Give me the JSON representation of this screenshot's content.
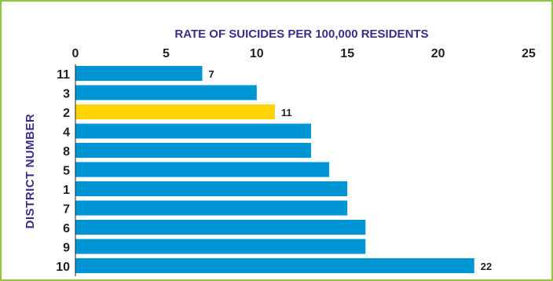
{
  "chart_data": {
    "type": "bar",
    "orientation": "horizontal",
    "title": "RATE OF SUICIDES PER 100,000 RESIDENTS",
    "xlabel": "RATE OF SUICIDES PER 100,000 RESIDENTS",
    "ylabel": "DISTRICT NUMBER",
    "xlim": [
      0,
      25
    ],
    "x_ticks": [
      "0",
      "5",
      "10",
      "15",
      "20",
      "25"
    ],
    "x_axis_position": "top",
    "categories": [
      "11",
      "3",
      "2",
      "4",
      "8",
      "5",
      "1",
      "7",
      "6",
      "9",
      "10"
    ],
    "values": [
      7,
      10,
      11,
      13,
      13,
      14,
      15,
      15,
      16,
      16,
      22
    ],
    "data_labels": [
      "7",
      "",
      "11",
      "",
      "",
      "",
      "",
      "",
      "",
      "",
      "22"
    ],
    "highlight_category": "2",
    "colors": {
      "bar": "#0095d5",
      "highlight": "#ffd400",
      "text": "#3d2d8a",
      "frame": "#8dc63f"
    },
    "grid": false
  }
}
